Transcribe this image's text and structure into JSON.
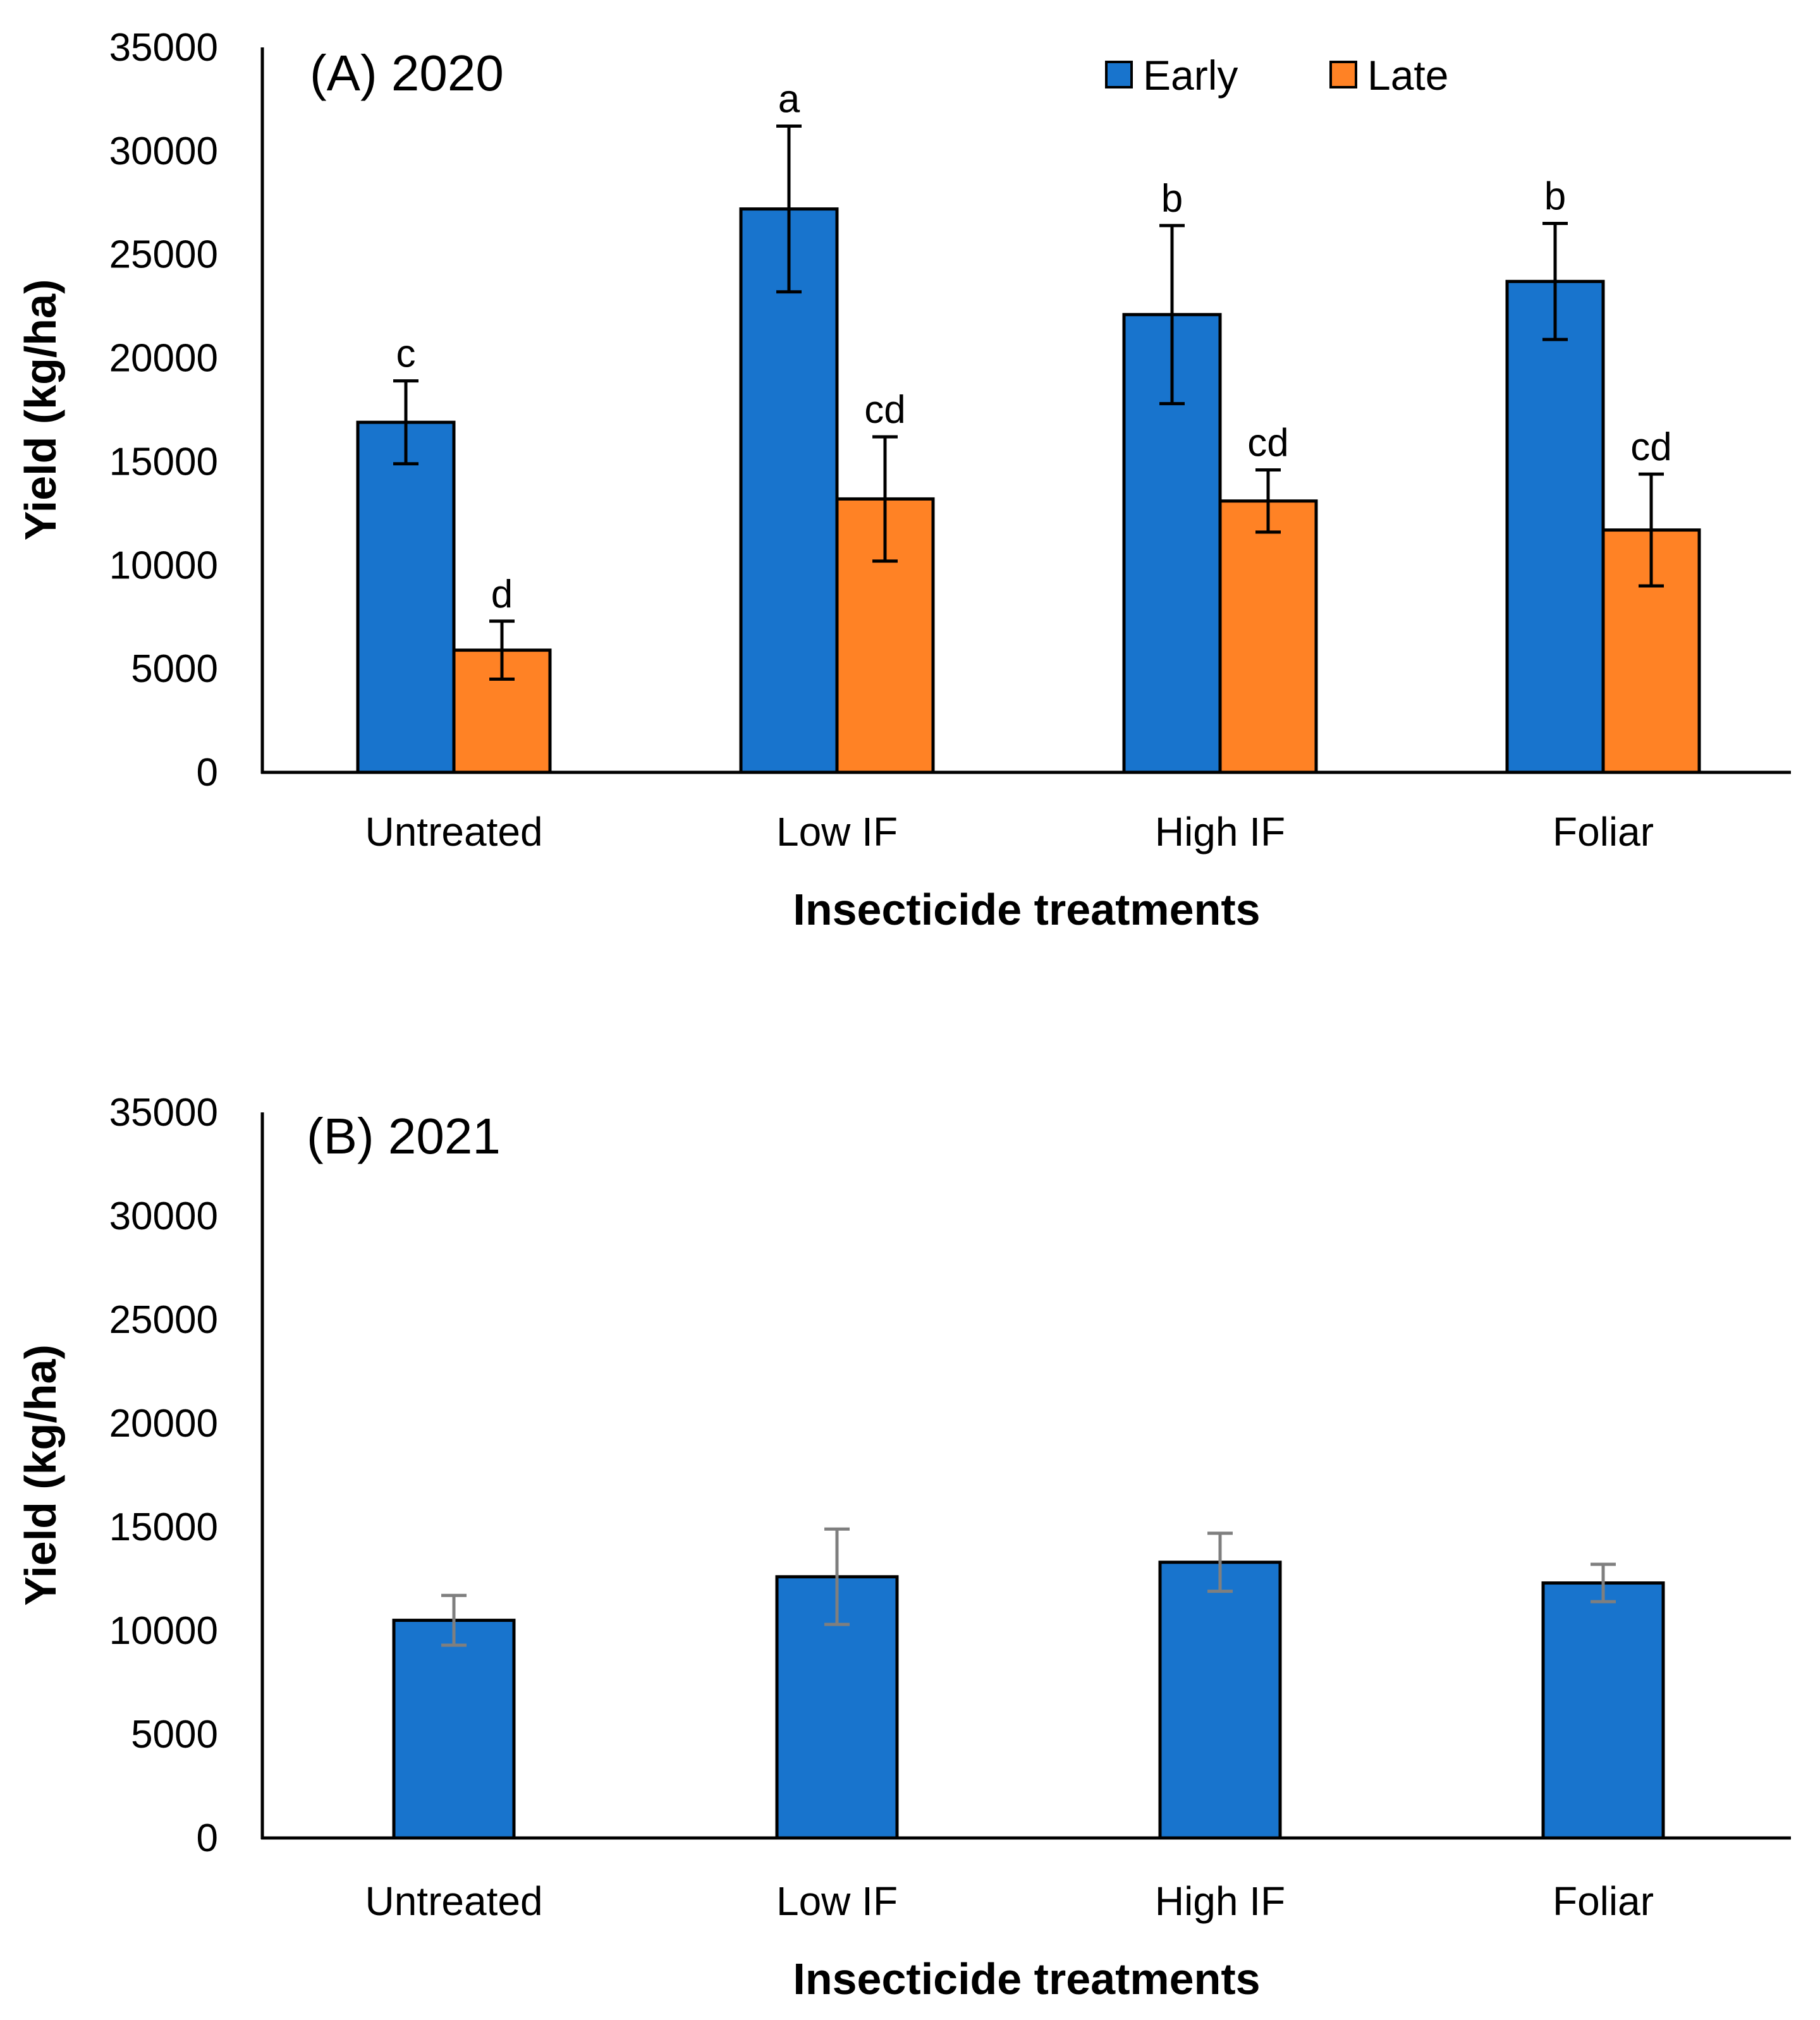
{
  "chart_data": [
    {
      "type": "bar",
      "title": "(A) 2020",
      "xlabel": "Insecticide treatments",
      "ylabel": "Yield (kg/ha)",
      "ylim": [
        0,
        35000
      ],
      "yticks": [
        "0",
        "5000",
        "10000",
        "15000",
        "20000",
        "25000",
        "30000",
        "35000"
      ],
      "categories": [
        "Untreated",
        "Low IF",
        "High IF",
        "Foliar"
      ],
      "legend_position": "top-right",
      "grid": false,
      "series": [
        {
          "name": "Early",
          "color": "#1874CD",
          "values": [
            16900,
            27200,
            22100,
            23700
          ],
          "errors": [
            2000,
            4000,
            4300,
            2800
          ],
          "labels": [
            "c",
            "a",
            "b",
            "b"
          ]
        },
        {
          "name": "Late",
          "color": "#FF8225",
          "values": [
            5900,
            13200,
            13100,
            11700
          ],
          "errors": [
            1400,
            3000,
            1500,
            2700
          ],
          "labels": [
            "d",
            "cd",
            "cd",
            "cd"
          ]
        }
      ]
    },
    {
      "type": "bar",
      "title": "(B) 2021",
      "xlabel": "Insecticide treatments",
      "ylabel": "Yield (kg/ha)",
      "ylim": [
        0,
        35000
      ],
      "yticks": [
        "0",
        "5000",
        "10000",
        "15000",
        "20000",
        "25000",
        "30000",
        "35000"
      ],
      "categories": [
        "Untreated",
        "Low IF",
        "High IF",
        "Foliar"
      ],
      "grid": false,
      "series": [
        {
          "color": "#1874CD",
          "error_color": "#7F7F7F",
          "values": [
            10500,
            12600,
            13300,
            12300
          ],
          "errors": [
            1200,
            2300,
            1400,
            900
          ]
        }
      ]
    }
  ]
}
